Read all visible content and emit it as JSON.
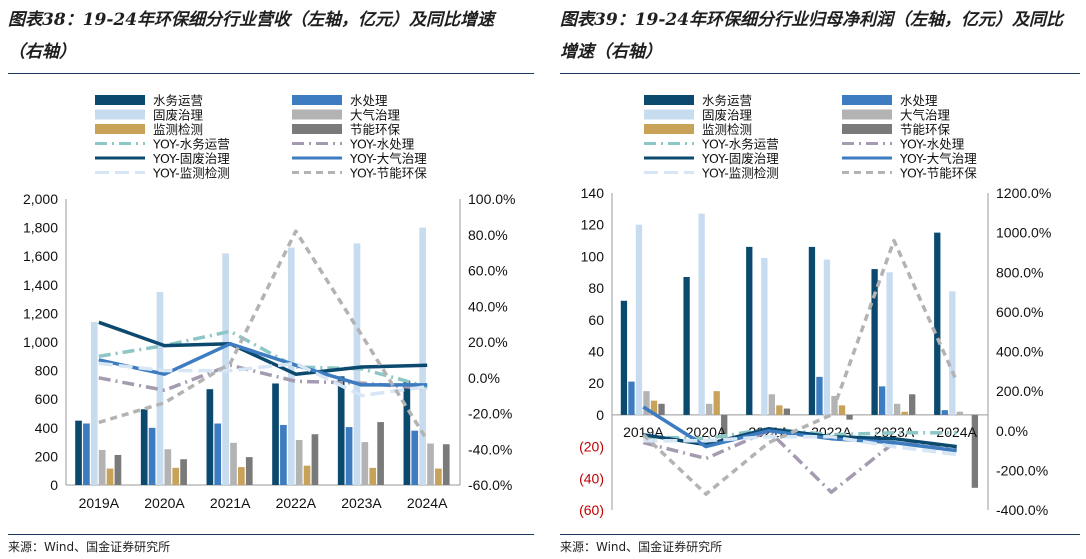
{
  "colors": {
    "water_ops": "#0b4a6e",
    "water_treat": "#3d7cc0",
    "solid_waste": "#c8dcf0",
    "air": "#b3b3b3",
    "monitor": "#c9a25a",
    "energy": "#7a7a7a",
    "yoy_water_ops": "#8cc7c6",
    "yoy_water_treat": "#a59bb0",
    "yoy_solid_waste": "#0b4a6e",
    "yoy_air": "#3d7cc0",
    "yoy_monitor": "#d6e6f5",
    "yoy_energy": "#b3b3b3"
  },
  "left": {
    "title": "图表38：19-24年环保细分行业营收（左轴，亿元）及同比增速（右轴）",
    "source": "来源：Wind、国金证券研究所",
    "chart_data": {
      "type": "bar",
      "categories": [
        "2019A",
        "2020A",
        "2021A",
        "2022A",
        "2023A",
        "2024A"
      ],
      "left_axis": {
        "min": 0,
        "max": 2000,
        "ticks": [
          "0",
          "200",
          "400",
          "600",
          "800",
          "1,000",
          "1,200",
          "1,400",
          "1,600",
          "1,800",
          "2,000"
        ]
      },
      "right_axis": {
        "min": -60,
        "max": 100,
        "ticks": [
          "-60.0%",
          "-40.0%",
          "-20.0%",
          "0.0%",
          "20.0%",
          "40.0%",
          "60.0%",
          "80.0%",
          "100.0%"
        ]
      },
      "bar_series": [
        {
          "name": "水务运营",
          "key": "water_ops",
          "values": [
            450,
            530,
            670,
            710,
            760,
            730
          ]
        },
        {
          "name": "水处理",
          "key": "water_treat",
          "values": [
            430,
            400,
            430,
            420,
            405,
            380
          ]
        },
        {
          "name": "固废治理",
          "key": "solid_waste",
          "values": [
            1140,
            1350,
            1620,
            1660,
            1690,
            1800
          ]
        },
        {
          "name": "大气治理",
          "key": "air",
          "values": [
            245,
            250,
            295,
            315,
            300,
            290
          ]
        },
        {
          "name": "监测检测",
          "key": "monitor",
          "values": [
            115,
            120,
            125,
            135,
            120,
            115
          ]
        },
        {
          "name": "节能环保",
          "key": "energy",
          "values": [
            210,
            180,
            195,
            355,
            440,
            285
          ]
        }
      ],
      "line_series": [
        {
          "name": "YOY-水务运营",
          "key": "yoy_water_ops",
          "dash": "dashdot",
          "values": [
            12,
            18,
            26,
            6,
            5,
            -5
          ]
        },
        {
          "name": "YOY-水处理",
          "key": "yoy_water_treat",
          "dash": "dashdot",
          "values": [
            0,
            -7,
            7,
            -2,
            -3,
            -6
          ]
        },
        {
          "name": "YOY-固废治理",
          "key": "yoy_solid_waste",
          "dash": "solid",
          "values": [
            31,
            18,
            19,
            2,
            6,
            7
          ]
        },
        {
          "name": "YOY-大气治理",
          "key": "yoy_air",
          "dash": "solid",
          "values": [
            10,
            2,
            19,
            7,
            -4,
            -4
          ]
        },
        {
          "name": "YOY-监测检测",
          "key": "yoy_monitor",
          "dash": "longdash",
          "values": [
            8,
            4,
            4,
            8,
            -10,
            -5
          ]
        },
        {
          "name": "YOY-节能环保",
          "key": "yoy_energy",
          "dash": "dashed",
          "values": [
            -25,
            -14,
            8,
            82,
            24,
            -35
          ]
        }
      ]
    }
  },
  "right": {
    "title": "图表39：19-24年环保细分行业归母净利润（左轴，亿元）及同比增速（右轴）",
    "source": "来源：Wind、国金证券研究所",
    "chart_data": {
      "type": "bar",
      "categories": [
        "2019A",
        "2020A",
        "2021A",
        "2022A",
        "2023A",
        "2024A"
      ],
      "left_axis": {
        "min": -60,
        "max": 140,
        "ticks": [
          "(60)",
          "(40)",
          "(20)",
          "0",
          "20",
          "40",
          "60",
          "80",
          "100",
          "120",
          "140"
        ]
      },
      "right_axis": {
        "min": -400,
        "max": 1200,
        "ticks": [
          "-400.0%",
          "-200.0%",
          "0.0%",
          "200.0%",
          "400.0%",
          "600.0%",
          "800.0%",
          "1000.0%",
          "1200.0%"
        ]
      },
      "bar_series": [
        {
          "name": "水务运营",
          "key": "water_ops",
          "values": [
            72,
            87,
            106,
            106,
            92,
            115
          ]
        },
        {
          "name": "水处理",
          "key": "water_treat",
          "values": [
            21,
            0,
            0,
            24,
            18,
            3
          ]
        },
        {
          "name": "固废治理",
          "key": "solid_waste",
          "values": [
            120,
            127,
            99,
            98,
            90,
            78
          ]
        },
        {
          "name": "大气治理",
          "key": "air",
          "values": [
            15,
            7,
            13,
            12,
            7,
            2
          ]
        },
        {
          "name": "监测检测",
          "key": "monitor",
          "values": [
            9,
            15,
            6,
            6,
            2,
            0
          ]
        },
        {
          "name": "节能环保",
          "key": "energy",
          "values": [
            7,
            -15,
            4,
            -3,
            13,
            -46
          ]
        }
      ],
      "line_series": [
        {
          "name": "YOY-水务运营",
          "key": "yoy_water_ops",
          "dash": "dashdot",
          "values": [
            -30,
            -40,
            10,
            -20,
            -10,
            -10
          ]
        },
        {
          "name": "YOY-水处理",
          "key": "yoy_water_treat",
          "dash": "dashdot",
          "values": [
            -60,
            -140,
            0,
            -310,
            -60,
            -90
          ]
        },
        {
          "name": "YOY-固废治理",
          "key": "yoy_solid_waste",
          "dash": "solid",
          "values": [
            -20,
            -70,
            10,
            -30,
            -40,
            -80
          ]
        },
        {
          "name": "YOY-大气治理",
          "key": "yoy_air",
          "dash": "solid",
          "values": [
            120,
            -80,
            0,
            -40,
            -60,
            -100
          ]
        },
        {
          "name": "YOY-监测检测",
          "key": "yoy_monitor",
          "dash": "longdash",
          "values": [
            -50,
            -50,
            -30,
            -30,
            -80,
            -120
          ]
        },
        {
          "name": "YOY-节能环保",
          "key": "yoy_energy",
          "dash": "dashed",
          "values": [
            -20,
            -320,
            -60,
            80,
            960,
            250
          ]
        }
      ]
    }
  }
}
